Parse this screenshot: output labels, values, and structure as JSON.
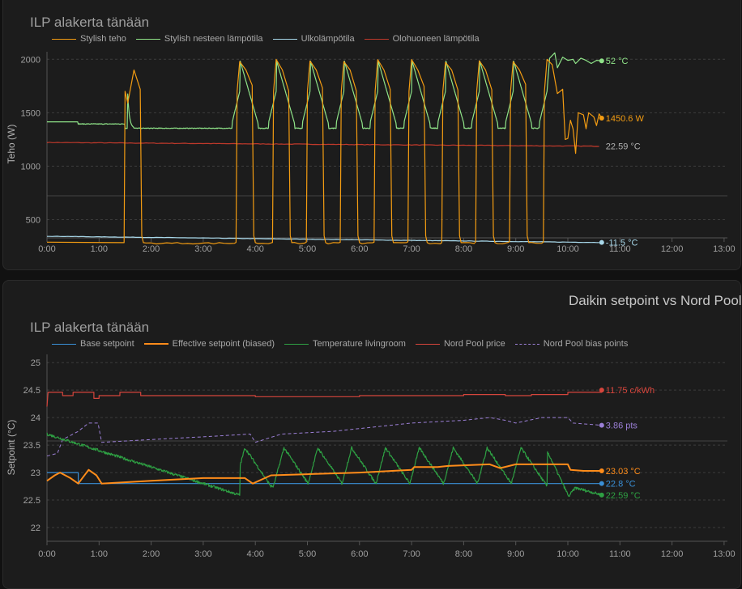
{
  "card1": {
    "chart_title": "ILP alakerta tänään",
    "ylabel": "Teho (W)"
  },
  "card2": {
    "card_title": "Daikin setpoint vs Nord Pool",
    "chart_title": "ILP alakerta tänään",
    "ylabel": "Setpoint (°C)"
  },
  "chart_data": [
    {
      "type": "line",
      "title": "ILP alakerta tänään",
      "ylabel": "Teho (W)",
      "x_ticks": [
        "0:00",
        "1:00",
        "2:00",
        "3:00",
        "4:00",
        "5:00",
        "6:00",
        "7:00",
        "8:00",
        "9:00",
        "10:00",
        "11:00",
        "12:00",
        "13:00"
      ],
      "y_ticks": [
        500,
        1000,
        1500,
        2000
      ],
      "ylim": [
        330,
        2070
      ],
      "grid": true,
      "legend_position": "top-left",
      "series": [
        {
          "name": "Stylish teho",
          "color": "#f39c12",
          "end_label": "1450.6 W",
          "end_value": 1450.6,
          "description": "cycling compressor power, baseline ~280 then peaks ~2000 W"
        },
        {
          "name": "Stylish nesteen lämpötila",
          "color": "#8fe388",
          "end_label": "52 °C",
          "end_value": 52
        },
        {
          "name": "Ulkolämpötila",
          "color": "#a8d8ea",
          "end_label": "-11.5 °C",
          "end_value": -11.5
        },
        {
          "name": "Olohuoneen lämpötila",
          "color": "#c0392b",
          "end_label": "22.59 °C",
          "end_value": 22.59
        }
      ]
    },
    {
      "type": "line",
      "title": "ILP alakerta tänään",
      "ylabel": "Setpoint (°C)",
      "x_ticks": [
        "0:00",
        "1:00",
        "2:00",
        "3:00",
        "4:00",
        "5:00",
        "6:00",
        "7:00",
        "8:00",
        "9:00",
        "10:00",
        "11:00",
        "12:00",
        "13:00"
      ],
      "y_ticks": [
        22,
        22.5,
        23,
        23.5,
        24,
        24.5,
        25
      ],
      "ylim": [
        21.75,
        25.15
      ],
      "grid": true,
      "legend_position": "top-left",
      "series": [
        {
          "name": "Base setpoint",
          "color": "#3a8fd6",
          "end_label": "22.8 °C",
          "end_value": 22.8
        },
        {
          "name": "Effective setpoint (biased)",
          "color": "#ff8c1a",
          "end_label": "23.03 °C",
          "end_value": 23.03
        },
        {
          "name": "Temperature livingroom",
          "color": "#2ea043",
          "end_label": "22.59 °C",
          "end_value": 22.59
        },
        {
          "name": "Nord Pool price",
          "color": "#d6453c",
          "end_label": "11.75 c/kWh",
          "end_value": 11.75
        },
        {
          "name": "Nord Pool bias points",
          "color": "#9b7fd6",
          "dashed": true,
          "end_label": "3.86 pts",
          "end_value": 3.86
        }
      ]
    }
  ]
}
